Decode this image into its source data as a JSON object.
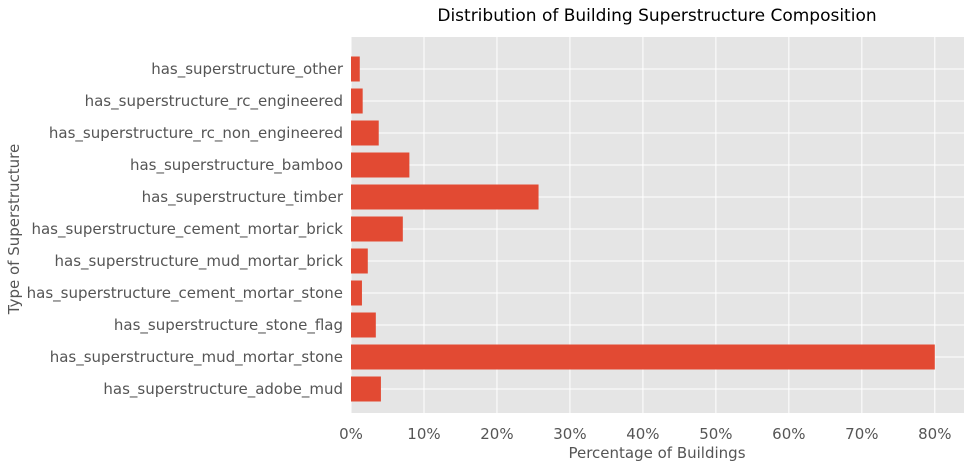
{
  "chart_data": {
    "type": "bar",
    "orientation": "horizontal",
    "title": "Distribution of Building Superstructure Composition",
    "xlabel": "Percentage of Buildings",
    "ylabel": "Type of Superstructure",
    "xlim": [
      0,
      84
    ],
    "x_ticks": [
      0,
      10,
      20,
      30,
      40,
      50,
      60,
      70,
      80
    ],
    "x_tick_labels": [
      "0%",
      "10%",
      "20%",
      "30%",
      "40%",
      "50%",
      "60%",
      "70%",
      "80%"
    ],
    "categories": [
      "has_superstructure_adobe_mud",
      "has_superstructure_mud_mortar_stone",
      "has_superstructure_stone_flag",
      "has_superstructure_cement_mortar_stone",
      "has_superstructure_mud_mortar_brick",
      "has_superstructure_cement_mortar_brick",
      "has_superstructure_timber",
      "has_superstructure_bamboo",
      "has_superstructure_rc_non_engineered",
      "has_superstructure_rc_engineered",
      "has_superstructure_other"
    ],
    "values": [
      4.1,
      80.0,
      3.4,
      1.5,
      2.3,
      7.1,
      25.7,
      8.0,
      3.8,
      1.6,
      1.2
    ],
    "grid": true,
    "colors": {
      "bar": "#E24A33",
      "plot_background": "#E5E5E5",
      "grid": "#FFFFFF",
      "text": "#555555"
    }
  }
}
